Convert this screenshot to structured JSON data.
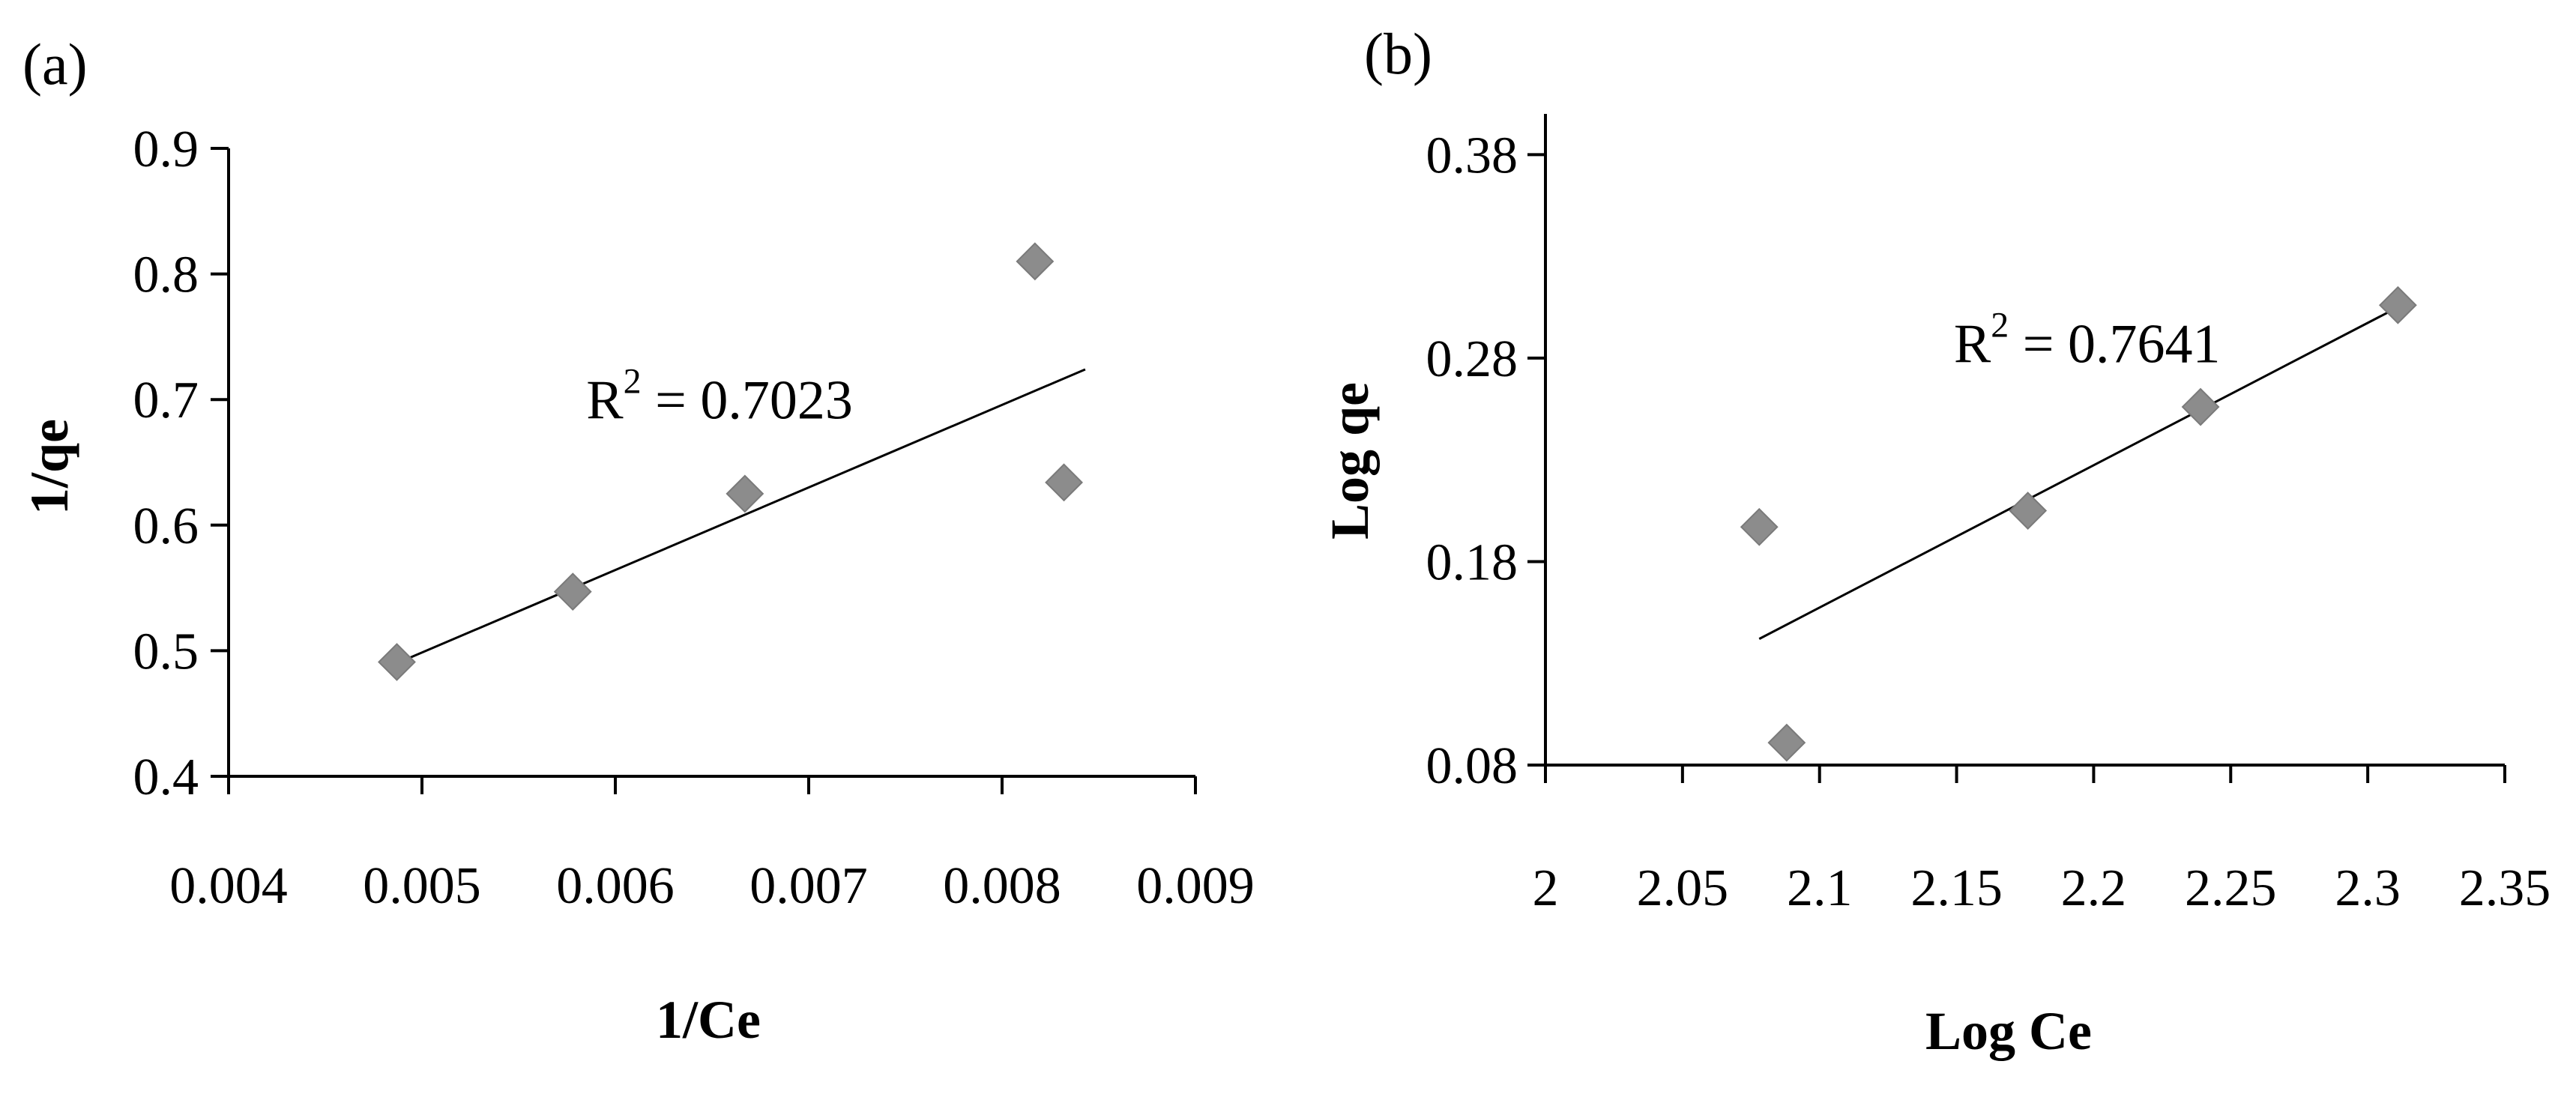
{
  "colors": {
    "marker": "#8c8c8c",
    "axis": "#000000",
    "background": "#ffffff"
  },
  "chart_data": [
    {
      "type": "scatter",
      "panel_label": "(a)",
      "xlabel": "1/Ce",
      "ylabel": "1/qe",
      "xlim": [
        0.004,
        0.009
      ],
      "ylim": [
        0.4,
        0.9
      ],
      "xticks": [
        0.004,
        0.005,
        0.006,
        0.007,
        0.008,
        0.009
      ],
      "xtick_labels": [
        "0.004",
        "0.005",
        "0.006",
        "0.007",
        "0.008",
        "0.009"
      ],
      "yticks": [
        0.4,
        0.5,
        0.6,
        0.7,
        0.8,
        0.9
      ],
      "ytick_labels": [
        "0.4",
        "0.5",
        "0.6",
        "0.7",
        "0.8",
        "0.9"
      ],
      "grid": false,
      "series": [
        {
          "x": [
            0.00487,
            0.00578,
            0.00667,
            0.00817,
            0.00832
          ],
          "y": [
            0.491,
            0.547,
            0.625,
            0.81,
            0.634
          ]
        }
      ],
      "trendline": {
        "x": [
          0.00487,
          0.00843
        ],
        "y": [
          0.49,
          0.724
        ]
      },
      "annotation": {
        "text": "R² = 0.7023",
        "base": "R",
        "sup": "2",
        "rest": " = 0.7023",
        "x": 0.00585,
        "y": 0.685
      }
    },
    {
      "type": "scatter",
      "panel_label": "(b)",
      "xlabel": "Log Ce",
      "ylabel": "Log qe",
      "xlim": [
        2,
        2.35
      ],
      "ylim": [
        0.08,
        0.4
      ],
      "xticks": [
        2,
        2.05,
        2.1,
        2.15,
        2.2,
        2.25,
        2.3,
        2.35
      ],
      "xtick_labels": [
        "2",
        "2.05",
        "2.1",
        "2.15",
        "2.2",
        "2.25",
        "2.3",
        "2.35"
      ],
      "yticks": [
        0.08,
        0.18,
        0.28,
        0.38
      ],
      "ytick_labels": [
        "0.08",
        "0.18",
        "0.28",
        "0.38"
      ],
      "grid": false,
      "series": [
        {
          "x": [
            2.078,
            2.088,
            2.176,
            2.239,
            2.311
          ],
          "y": [
            0.197,
            0.091,
            0.205,
            0.256,
            0.306
          ]
        }
      ],
      "trendline": {
        "x": [
          2.078,
          2.311
        ],
        "y": [
          0.142,
          0.305
        ]
      },
      "annotation": {
        "text": "R² = 0.7641",
        "base": "R",
        "sup": "2",
        "rest": " = 0.7641",
        "x": 2.149,
        "y": 0.278
      }
    }
  ]
}
